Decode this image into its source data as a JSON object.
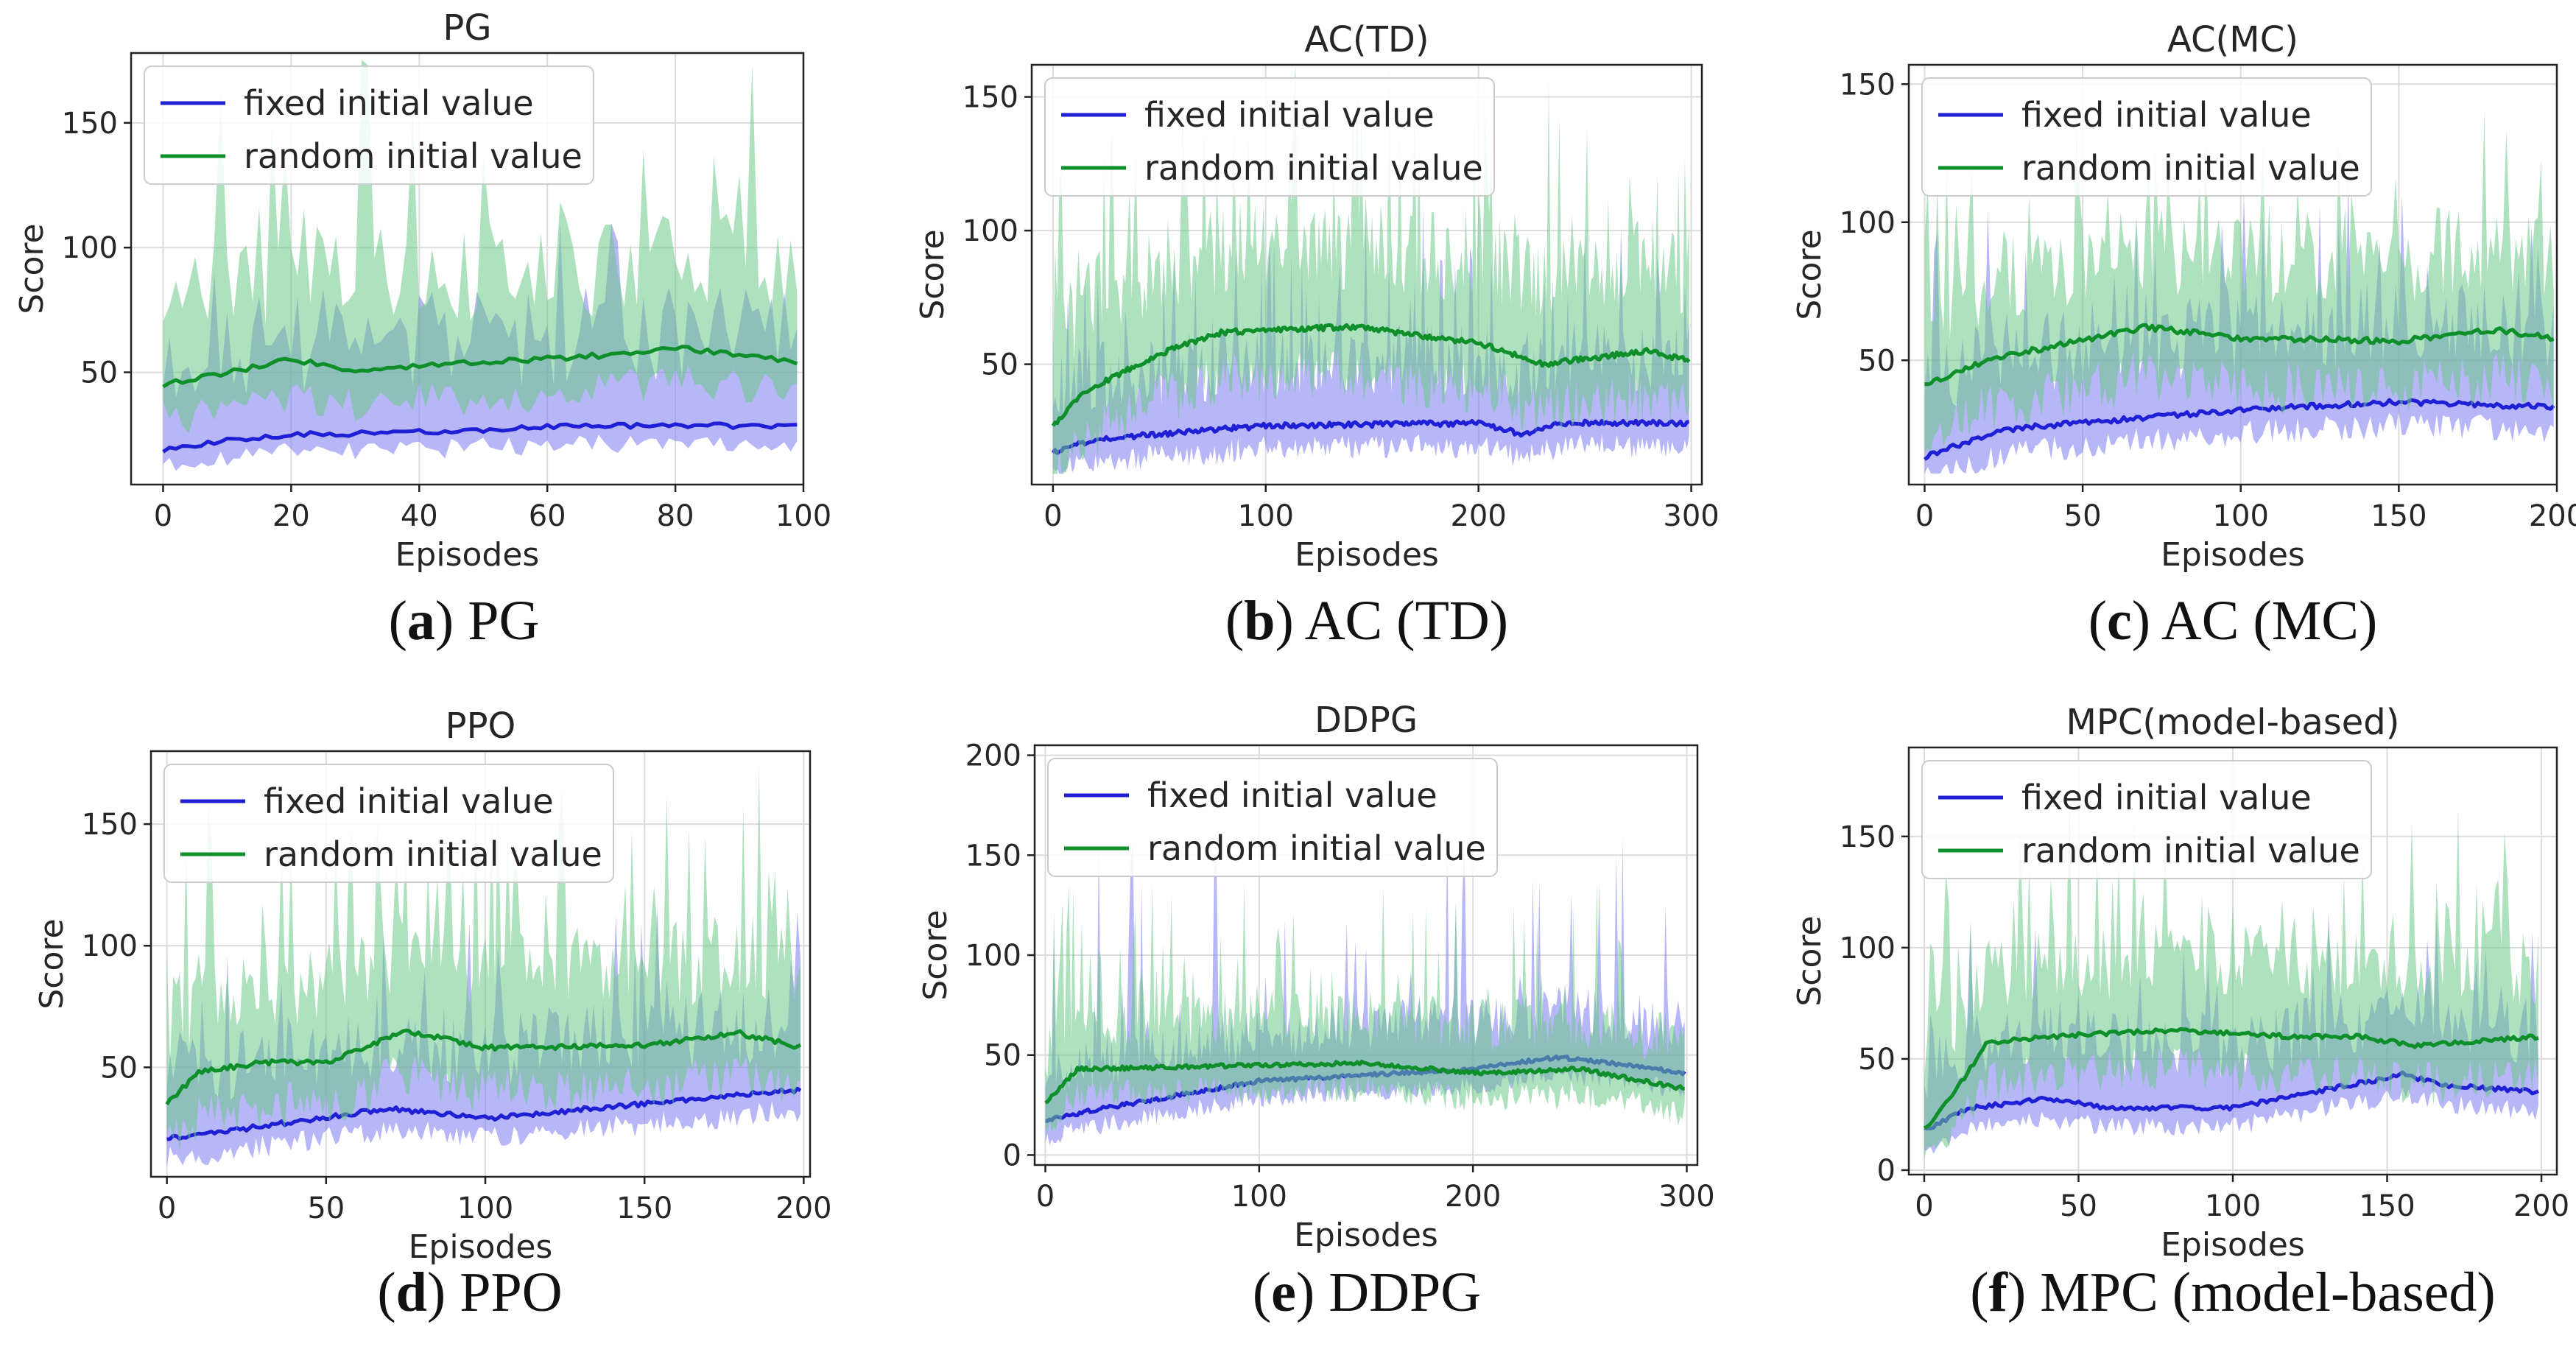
{
  "chart_data": [
    {
      "type": "line",
      "title": "PG",
      "caption": {
        "letter": "a",
        "text": "PG"
      },
      "xlabel": "Episodes",
      "ylabel": "Score",
      "xlim": [
        -5,
        100
      ],
      "ylim": [
        5,
        178
      ],
      "xticks": [
        0,
        20,
        40,
        60,
        80,
        100
      ],
      "yticks": [
        50,
        100,
        150
      ],
      "grid": true,
      "legend": "top-left",
      "n": 100,
      "series": [
        {
          "name": "fixed initial value",
          "color": "#1f1fd6",
          "band_color": "#7b7bf0",
          "mean": [
            [
              0,
              19
            ],
            [
              10,
              23
            ],
            [
              20,
              25
            ],
            [
              40,
              26
            ],
            [
              60,
              28
            ],
            [
              80,
              29
            ],
            [
              100,
              28
            ]
          ],
          "band_lo": 10,
          "band_hi": 45,
          "spike_prob": 0.12,
          "spike_max": 35,
          "seed": 11
        },
        {
          "name": "random initial value",
          "color": "#0f8f2a",
          "band_color": "#6cc889",
          "mean": [
            [
              0,
              45
            ],
            [
              10,
              50
            ],
            [
              20,
              55
            ],
            [
              30,
              51
            ],
            [
              50,
              54
            ],
            [
              70,
              57
            ],
            [
              80,
              60
            ],
            [
              90,
              57
            ],
            [
              100,
              54
            ]
          ],
          "band_lo": 20,
          "band_hi": 45,
          "spike_prob": 0.2,
          "spike_max": 80,
          "seed": 12
        }
      ]
    },
    {
      "type": "line",
      "title": "AC(TD)",
      "caption": {
        "letter": "b",
        "text": "AC (TD)"
      },
      "xlabel": "Episodes",
      "ylabel": "Score",
      "xlim": [
        -10,
        305
      ],
      "ylim": [
        5,
        162
      ],
      "xticks": [
        0,
        100,
        200,
        300
      ],
      "yticks": [
        50,
        100,
        150
      ],
      "grid": true,
      "legend": "top-left",
      "n": 300,
      "series": [
        {
          "name": "fixed initial value",
          "color": "#1f1fd6",
          "band_color": "#7b7bf0",
          "mean": [
            [
              0,
              17
            ],
            [
              20,
              22
            ],
            [
              100,
              27
            ],
            [
              200,
              28
            ],
            [
              220,
              24
            ],
            [
              240,
              28
            ],
            [
              300,
              28
            ]
          ],
          "band_lo": 12,
          "band_hi": 30,
          "spike_prob": 0.15,
          "spike_max": 50,
          "seed": 21
        },
        {
          "name": "random initial value",
          "color": "#0f8f2a",
          "band_color": "#6cc889",
          "mean": [
            [
              0,
              27
            ],
            [
              15,
              40
            ],
            [
              50,
              54
            ],
            [
              80,
              62
            ],
            [
              140,
              64
            ],
            [
              200,
              58
            ],
            [
              230,
              50
            ],
            [
              280,
              55
            ],
            [
              300,
              51
            ]
          ],
          "band_lo": 25,
          "band_hi": 40,
          "spike_prob": 0.25,
          "spike_max": 60,
          "seed": 22
        }
      ]
    },
    {
      "type": "line",
      "title": "AC(MC)",
      "caption": {
        "letter": "c",
        "text": "AC (MC)"
      },
      "xlabel": "Episodes",
      "ylabel": "Score",
      "xlim": [
        -5,
        200
      ],
      "ylim": [
        5,
        157
      ],
      "xticks": [
        0,
        50,
        100,
        150,
        200
      ],
      "yticks": [
        50,
        100,
        150
      ],
      "grid": true,
      "legend": "top-left",
      "n": 200,
      "series": [
        {
          "name": "fixed initial value",
          "color": "#1f1fd6",
          "band_color": "#7b7bf0",
          "mean": [
            [
              0,
              15
            ],
            [
              25,
              25
            ],
            [
              100,
              32
            ],
            [
              150,
              35
            ],
            [
              200,
              33
            ]
          ],
          "band_lo": 12,
          "band_hi": 35,
          "spike_prob": 0.15,
          "spike_max": 50,
          "seed": 31
        },
        {
          "name": "random initial value",
          "color": "#0f8f2a",
          "band_color": "#6cc889",
          "mean": [
            [
              0,
              41
            ],
            [
              20,
              50
            ],
            [
              40,
              55
            ],
            [
              70,
              62
            ],
            [
              100,
              58
            ],
            [
              150,
              57
            ],
            [
              180,
              61
            ],
            [
              200,
              58
            ]
          ],
          "band_lo": 25,
          "band_hi": 35,
          "spike_prob": 0.2,
          "spike_max": 45,
          "seed": 32
        }
      ]
    },
    {
      "type": "line",
      "title": "PPO",
      "caption": {
        "letter": "d",
        "text": "PPO"
      },
      "xlabel": "Episodes",
      "ylabel": "Score",
      "xlim": [
        -5,
        202
      ],
      "ylim": [
        5,
        180
      ],
      "xticks": [
        0,
        50,
        100,
        150,
        200
      ],
      "yticks": [
        50,
        100,
        150
      ],
      "grid": true,
      "legend": "top-left",
      "n": 200,
      "series": [
        {
          "name": "fixed initial value",
          "color": "#1f1fd6",
          "band_color": "#7b7bf0",
          "mean": [
            [
              0,
              21
            ],
            [
              20,
              24
            ],
            [
              70,
              33
            ],
            [
              100,
              29
            ],
            [
              150,
              35
            ],
            [
              200,
              41
            ]
          ],
          "band_lo": 12,
          "band_hi": 35,
          "spike_prob": 0.15,
          "spike_max": 45,
          "seed": 41
        },
        {
          "name": "random initial value",
          "color": "#0f8f2a",
          "band_color": "#6cc889",
          "mean": [
            [
              0,
              35
            ],
            [
              10,
              48
            ],
            [
              30,
              52
            ],
            [
              50,
              52
            ],
            [
              75,
              65
            ],
            [
              100,
              58
            ],
            [
              150,
              59
            ],
            [
              180,
              64
            ],
            [
              200,
              58
            ]
          ],
          "band_lo": 25,
          "band_hi": 40,
          "spike_prob": 0.25,
          "spike_max": 70,
          "seed": 42
        }
      ]
    },
    {
      "type": "line",
      "title": "DDPG",
      "caption": {
        "letter": "e",
        "text": "DDPG"
      },
      "xlabel": "Episodes",
      "ylabel": "Score",
      "xlim": [
        -5,
        305
      ],
      "ylim": [
        -5,
        205
      ],
      "xticks": [
        0,
        100,
        200,
        300
      ],
      "yticks": [
        0,
        50,
        100,
        150,
        200
      ],
      "grid": true,
      "legend": "top-left",
      "n": 300,
      "series": [
        {
          "name": "fixed initial value",
          "color": "#1f1fd6",
          "band_color": "#7b7bf0",
          "mean": [
            [
              0,
              17
            ],
            [
              20,
              22
            ],
            [
              100,
              37
            ],
            [
              200,
              43
            ],
            [
              240,
              49
            ],
            [
              300,
              41
            ]
          ],
          "band_lo": 12,
          "band_hi": 30,
          "spike_prob": 0.12,
          "spike_max": 110,
          "seed": 51
        },
        {
          "name": "random initial value",
          "color": "#0f8f2a",
          "band_color": "#6cc889",
          "mean": [
            [
              0,
              26
            ],
            [
              15,
              43
            ],
            [
              100,
              45
            ],
            [
              150,
              46
            ],
            [
              200,
              41
            ],
            [
              250,
              43
            ],
            [
              300,
              33
            ]
          ],
          "band_lo": 18,
          "band_hi": 30,
          "spike_prob": 0.18,
          "spike_max": 70,
          "seed": 52
        }
      ]
    },
    {
      "type": "line",
      "title": "MPC(model-based)",
      "caption": {
        "letter": "f",
        "text": "MPC (model-based)"
      },
      "xlabel": "Episodes",
      "ylabel": "Score",
      "xlim": [
        -5,
        205
      ],
      "ylim": [
        -2,
        190
      ],
      "xticks": [
        0,
        50,
        100,
        150,
        200
      ],
      "yticks": [
        0,
        50,
        100,
        150
      ],
      "grid": true,
      "legend": "top-left",
      "n": 200,
      "series": [
        {
          "name": "fixed initial value",
          "color": "#1f1fd6",
          "band_color": "#7b7bf0",
          "mean": [
            [
              0,
              18
            ],
            [
              15,
              28
            ],
            [
              40,
              32
            ],
            [
              60,
              28
            ],
            [
              100,
              28
            ],
            [
              130,
              36
            ],
            [
              155,
              43
            ],
            [
              170,
              38
            ],
            [
              200,
              35
            ]
          ],
          "band_lo": 12,
          "band_hi": 35,
          "spike_prob": 0.15,
          "spike_max": 45,
          "seed": 61
        },
        {
          "name": "random initial value",
          "color": "#0f8f2a",
          "band_color": "#6cc889",
          "mean": [
            [
              0,
              18
            ],
            [
              10,
              35
            ],
            [
              20,
              57
            ],
            [
              40,
              60
            ],
            [
              80,
              63
            ],
            [
              120,
              60
            ],
            [
              140,
              60
            ],
            [
              160,
              56
            ],
            [
              200,
              60
            ]
          ],
          "band_lo": 25,
          "band_hi": 40,
          "spike_prob": 0.25,
          "spike_max": 70,
          "seed": 62
        }
      ]
    }
  ]
}
